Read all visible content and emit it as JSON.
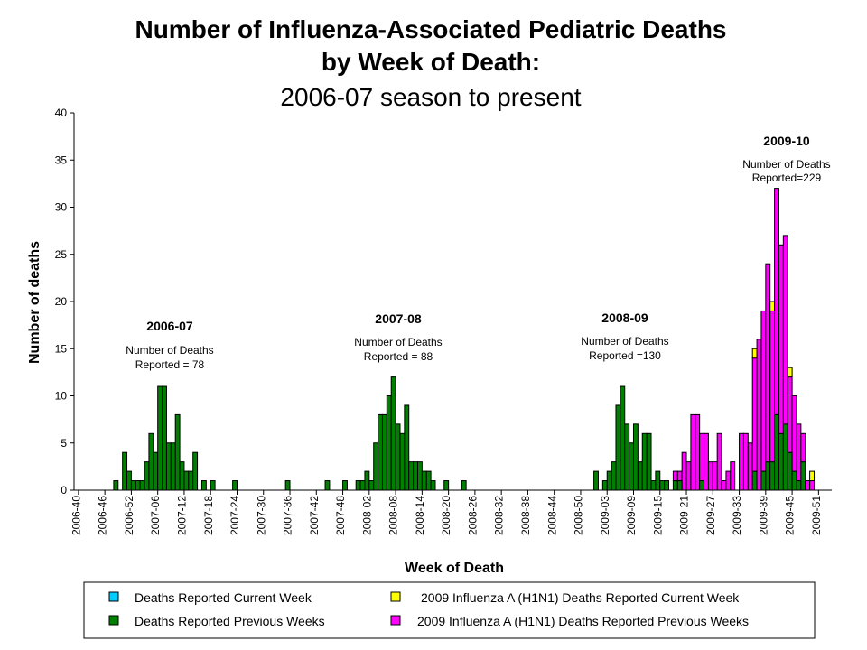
{
  "chart_data": {
    "type": "bar",
    "stacked": true,
    "title": [
      "Number of Influenza-Associated Pediatric Deaths",
      "by Week of Death:",
      "2006-07 season to present"
    ],
    "xlabel": "Week of Death",
    "ylabel": "Number of deaths",
    "ylim": [
      0,
      40
    ],
    "yticks": [
      0,
      5,
      10,
      15,
      20,
      25,
      30,
      35,
      40
    ],
    "grid": false,
    "categories_spec": {
      "start_year": 2006,
      "start_week": 40,
      "count": 172,
      "weeks_per_year": {
        "2006": 52,
        "2007": 52,
        "2008": 53,
        "2009": 53
      },
      "tick_every": 6
    },
    "series": [
      {
        "name": "Deaths Reported Previous Weeks",
        "color": "#008000",
        "values": {
          "2006-49": 1,
          "2006-51": 4,
          "2006-52": 2,
          "2007-01": 1,
          "2007-02": 1,
          "2007-03": 1,
          "2007-04": 3,
          "2007-05": 6,
          "2007-06": 4,
          "2007-07": 11,
          "2007-08": 11,
          "2007-09": 5,
          "2007-10": 5,
          "2007-11": 8,
          "2007-12": 3,
          "2007-13": 2,
          "2007-14": 2,
          "2007-15": 4,
          "2007-17": 1,
          "2007-19": 1,
          "2007-24": 1,
          "2007-36": 1,
          "2007-45": 1,
          "2007-49": 1,
          "2007-52": 1,
          "2008-01": 1,
          "2008-02": 2,
          "2008-03": 1,
          "2008-04": 5,
          "2008-05": 8,
          "2008-06": 8,
          "2008-07": 10,
          "2008-08": 12,
          "2008-09": 7,
          "2008-10": 6,
          "2008-11": 9,
          "2008-12": 3,
          "2008-13": 3,
          "2008-14": 3,
          "2008-15": 2,
          "2008-16": 2,
          "2008-17": 1,
          "2008-20": 1,
          "2008-24": 1,
          "2009-01": 2,
          "2009-03": 1,
          "2009-04": 2,
          "2009-05": 3,
          "2009-06": 9,
          "2009-07": 11,
          "2009-08": 7,
          "2009-09": 5,
          "2009-10": 7,
          "2009-11": 3,
          "2009-12": 6,
          "2009-13": 6,
          "2009-14": 1,
          "2009-15": 2,
          "2009-16": 1,
          "2009-17": 1,
          "2009-19": 1,
          "2009-20": 1,
          "2009-25": 1,
          "2009-37": 2,
          "2009-39": 2,
          "2009-40": 3,
          "2009-41": 3,
          "2009-42": 8,
          "2009-43": 6,
          "2009-44": 7,
          "2009-45": 4,
          "2009-46": 2,
          "2009-47": 1,
          "2009-48": 3
        }
      },
      {
        "name": "Deaths Reported Current Week",
        "color": "#00CCFF",
        "values": {}
      },
      {
        "name": "2009 Influenza A (H1N1) Deaths Reported Previous Weeks",
        "color": "#FF00FF",
        "values": {
          "2009-19": 1,
          "2009-20": 1,
          "2009-21": 4,
          "2009-22": 3,
          "2009-23": 8,
          "2009-24": 8,
          "2009-25": 5,
          "2009-26": 6,
          "2009-27": 3,
          "2009-28": 3,
          "2009-29": 6,
          "2009-30": 1,
          "2009-31": 2,
          "2009-32": 3,
          "2009-34": 6,
          "2009-35": 6,
          "2009-36": 5,
          "2009-37": 12,
          "2009-38": 16,
          "2009-39": 17,
          "2009-40": 21,
          "2009-41": 16,
          "2009-42": 24,
          "2009-43": 20,
          "2009-44": 20,
          "2009-45": 8,
          "2009-46": 8,
          "2009-47": 6,
          "2009-48": 3,
          "2009-49": 1,
          "2009-50": 1
        }
      },
      {
        "name": "2009 Influenza A (H1N1) Deaths Reported Current Week",
        "color": "#FFFF00",
        "values": {
          "2009-37": 1,
          "2009-41": 1,
          "2009-45": 1,
          "2009-50": 1
        }
      }
    ],
    "legend": {
      "placement": "bottom",
      "entries": [
        {
          "label": "Deaths Reported Current Week",
          "color": "#00CCFF"
        },
        {
          "label": "2009 Influenza A (H1N1) Deaths Reported Current Week",
          "color": "#FFFF00"
        },
        {
          "label": "Deaths Reported Previous Weeks",
          "color": "#008000"
        },
        {
          "label": "2009 Influenza A (H1N1) Deaths Reported Previous Weeks",
          "color": "#FF00FF"
        }
      ]
    },
    "annotations": [
      {
        "season": "2006-07",
        "line1": "Number of Deaths",
        "line2": "Reported = 78"
      },
      {
        "season": "2007-08",
        "line1": "Number of Deaths",
        "line2": "Reported = 88"
      },
      {
        "season": "2008-09",
        "line1": "Number of Deaths",
        "line2": "Reported =130"
      },
      {
        "season": "2009-10",
        "line1": "Number of Deaths",
        "line2": "Reported=229"
      }
    ]
  }
}
